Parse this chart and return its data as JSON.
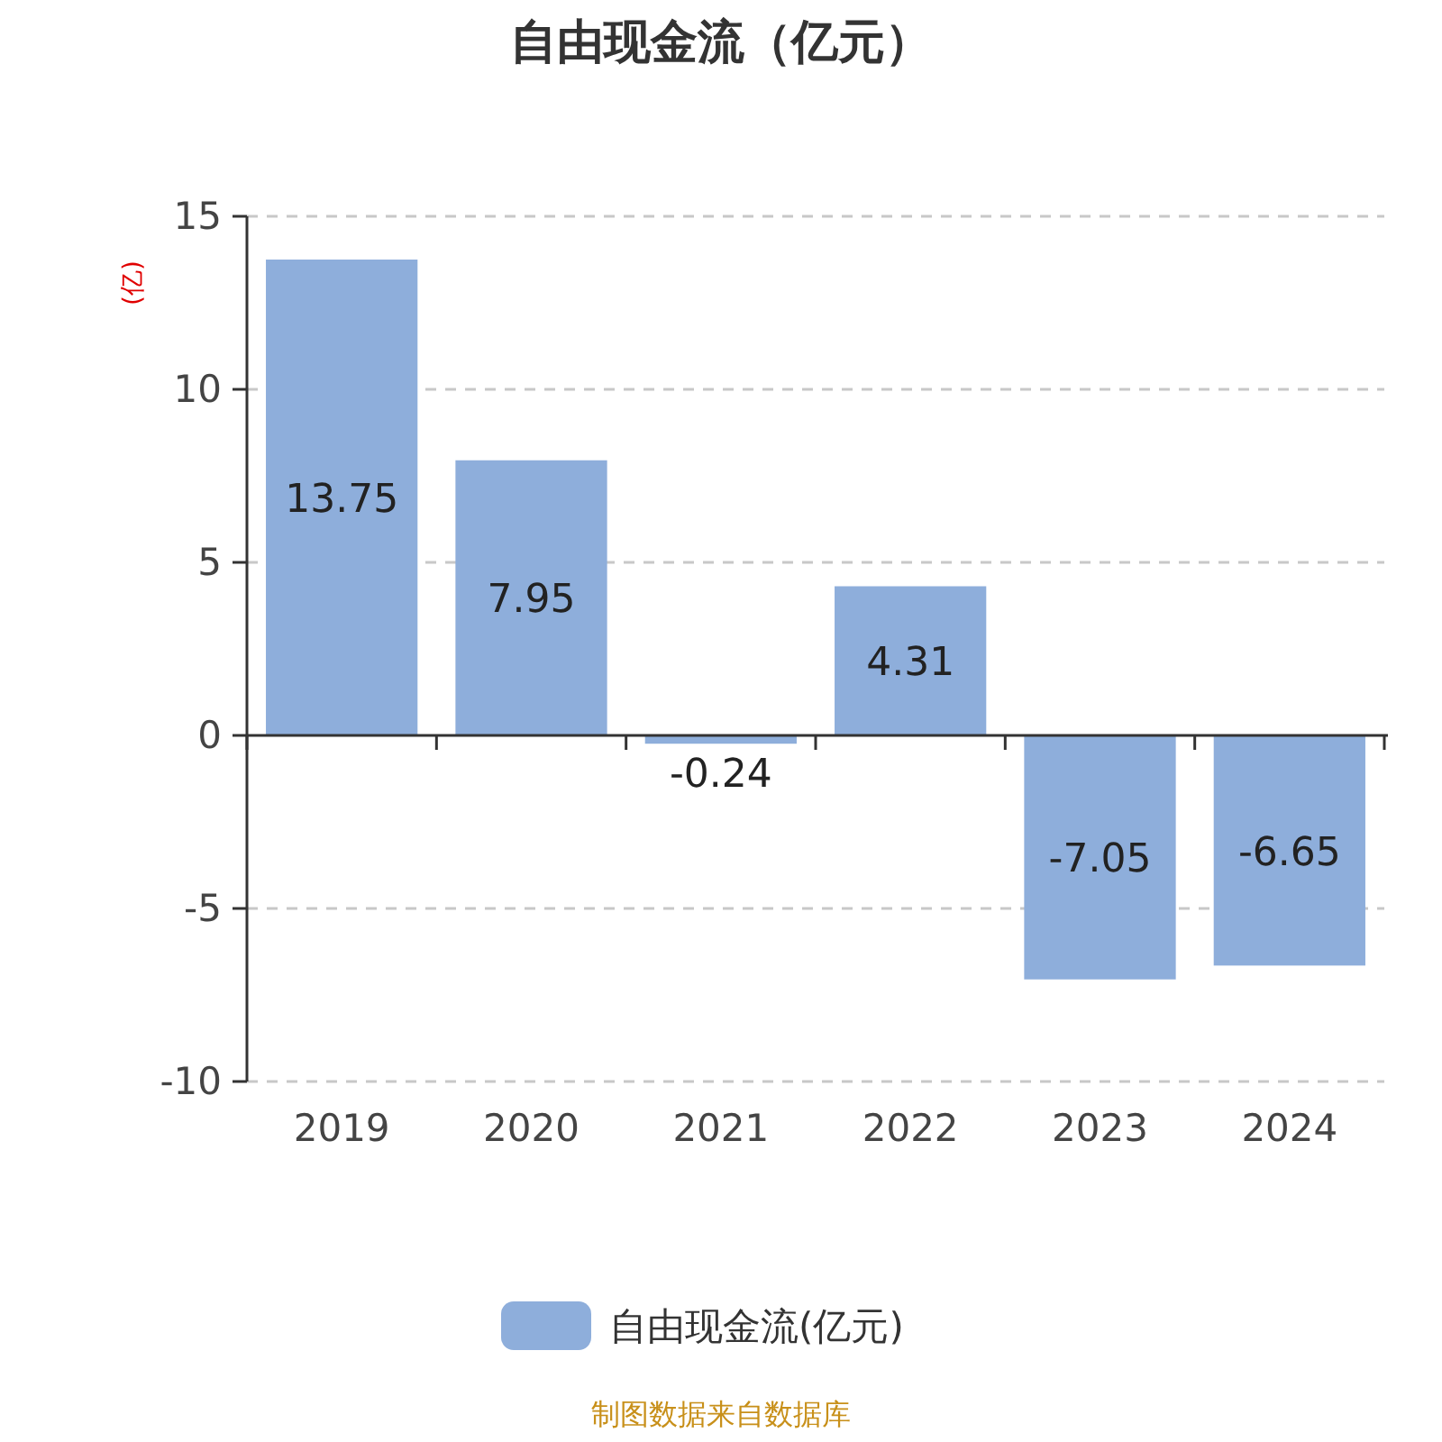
{
  "chart_data": {
    "type": "bar",
    "title": "自由现金流（亿元）",
    "ylabel": "(亿)",
    "categories": [
      "2019",
      "2020",
      "2021",
      "2022",
      "2023",
      "2024"
    ],
    "series": [
      {
        "name": "自由现金流(亿元)",
        "color": "#8eaedb",
        "values": [
          13.75,
          7.95,
          -0.24,
          4.31,
          -7.05,
          -6.65
        ]
      }
    ],
    "ylim": [
      -10,
      15
    ],
    "yticks": [
      -10,
      -5,
      0,
      5,
      10,
      15
    ],
    "grid": "y",
    "legend": "bottom",
    "data_labels": true,
    "annotations": [
      "制图数据来自数据库"
    ]
  }
}
